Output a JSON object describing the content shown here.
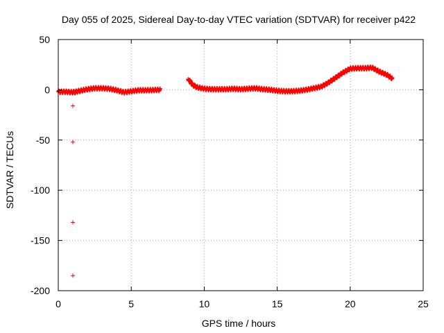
{
  "chart_data": {
    "type": "scatter",
    "title": "Day 055 of 2025, Sidereal Day-to-day VTEC variation (SDTVAR) for receiver p422",
    "xlabel": "GPS time / hours",
    "ylabel": "SDTVAR / TECUs",
    "xlim": [
      0,
      25
    ],
    "ylim": [
      -200,
      50
    ],
    "xticks": [
      0,
      5,
      10,
      15,
      20,
      25
    ],
    "yticks": [
      50,
      0,
      -50,
      -100,
      -150,
      -200
    ],
    "xtick_labels": [
      "0",
      "5",
      "10",
      "15",
      "20",
      "25"
    ],
    "ytick_labels": [
      "50",
      "0",
      "-50",
      "-100",
      "-150",
      "-200"
    ],
    "grid": true,
    "series": [
      {
        "name": "SDTVAR",
        "color": "#ff0000",
        "marker": "plus",
        "band_thickness": 3,
        "segments": [
          [
            [
              0.0,
              -2
            ],
            [
              0.5,
              -2
            ],
            [
              1.0,
              -2.5
            ],
            [
              1.2,
              -2
            ],
            [
              1.5,
              -1
            ],
            [
              2.0,
              0.5
            ],
            [
              2.5,
              1.5
            ],
            [
              3.0,
              1.5
            ],
            [
              3.5,
              1.0
            ],
            [
              4.0,
              -0.5
            ],
            [
              4.5,
              -2.5
            ],
            [
              5.0,
              -1.5
            ],
            [
              5.5,
              -0.5
            ],
            [
              6.0,
              -0.5
            ],
            [
              6.5,
              -0.3
            ],
            [
              7.0,
              0
            ]
          ],
          [
            [
              8.9,
              11
            ],
            [
              9.2,
              5
            ],
            [
              9.5,
              2.5
            ],
            [
              10.0,
              1
            ],
            [
              10.5,
              0.5
            ],
            [
              11.0,
              0.5
            ],
            [
              11.5,
              0.5
            ],
            [
              12.0,
              1
            ],
            [
              12.5,
              0.5
            ],
            [
              13.0,
              1
            ],
            [
              13.5,
              1.5
            ],
            [
              14.0,
              0.5
            ],
            [
              14.5,
              0
            ],
            [
              15.0,
              -1
            ],
            [
              15.5,
              -1.5
            ],
            [
              16.0,
              -1.5
            ],
            [
              16.5,
              -1
            ],
            [
              17.0,
              0
            ],
            [
              17.5,
              1.5
            ],
            [
              18.0,
              3
            ],
            [
              18.5,
              7
            ],
            [
              19.0,
              12
            ],
            [
              19.5,
              17
            ],
            [
              20.0,
              21
            ],
            [
              20.5,
              21.5
            ],
            [
              21.0,
              21.5
            ],
            [
              21.5,
              22
            ],
            [
              22.0,
              18
            ],
            [
              22.5,
              15
            ],
            [
              22.9,
              11
            ]
          ]
        ],
        "outliers": [
          [
            1.0,
            -16
          ],
          [
            1.0,
            -52
          ],
          [
            1.0,
            -132
          ],
          [
            1.0,
            -185
          ]
        ]
      }
    ]
  }
}
